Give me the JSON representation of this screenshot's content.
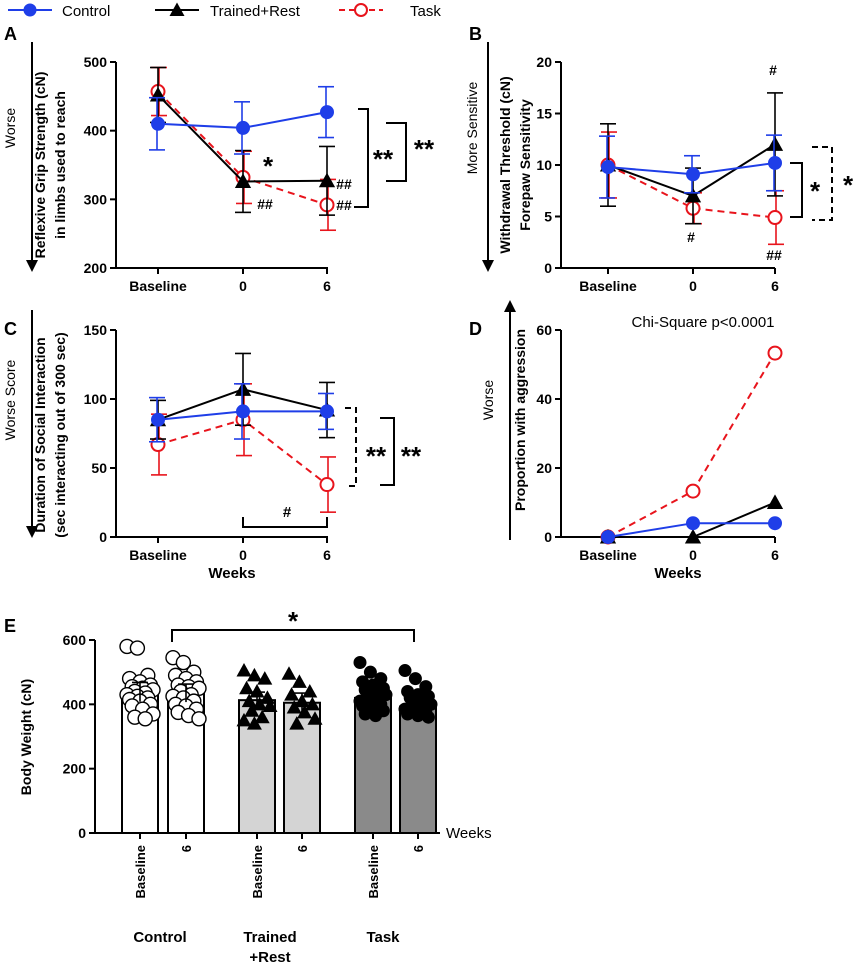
{
  "legend": {
    "items": [
      {
        "name": "Control",
        "color": "#1f3ee8",
        "marker": "filled-circle",
        "dash": false
      },
      {
        "name": "Trained+Rest",
        "color": "#000000",
        "marker": "filled-triangle",
        "dash": false
      },
      {
        "name": "Task",
        "color": "#e8141c",
        "marker": "open-circle",
        "dash": true
      }
    ]
  },
  "chart_data": [
    {
      "panel": "A",
      "type": "line",
      "ylabel_lines": [
        "Reflexive Grip Strength (cN)",
        "in limbs used to reach"
      ],
      "direction_label": "Worse",
      "categories": [
        "Baseline",
        "0",
        "6"
      ],
      "ylim": [
        200,
        500
      ],
      "yticks": [
        200,
        300,
        400,
        500
      ],
      "series": [
        {
          "name": "Control",
          "values": [
            410,
            404,
            427
          ],
          "errors": [
            38,
            38,
            37
          ]
        },
        {
          "name": "Trained+Rest",
          "values": [
            452,
            326,
            327
          ],
          "errors": [
            40,
            45,
            50
          ]
        },
        {
          "name": "Task",
          "values": [
            457,
            332,
            292
          ],
          "errors": [
            35,
            38,
            37
          ]
        }
      ],
      "annotations": [
        {
          "text": "*",
          "category": "0",
          "value": 345
        },
        {
          "text": "##",
          "category": "0",
          "value": 291
        },
        {
          "text": "##",
          "category": "6",
          "value": 322
        },
        {
          "text": "##",
          "category": "6",
          "value": 289
        },
        {
          "text": "**",
          "bracket": "Control vs Trained+Rest"
        },
        {
          "text": "**",
          "bracket": "Control vs Task"
        }
      ]
    },
    {
      "panel": "B",
      "type": "line",
      "ylabel_lines": [
        "Withdrawal Threshold (cN)",
        "Forepaw Sensitivity"
      ],
      "direction_label": "More Sensitive",
      "categories": [
        "Baseline",
        "0",
        "6"
      ],
      "ylim": [
        0,
        20
      ],
      "yticks": [
        0,
        5,
        10,
        15,
        20
      ],
      "series": [
        {
          "name": "Control",
          "values": [
            9.8,
            9.1,
            10.2
          ],
          "errors": [
            3.0,
            1.8,
            2.7
          ]
        },
        {
          "name": "Trained+Rest",
          "values": [
            10.0,
            7.0,
            12.0
          ],
          "errors": [
            4.0,
            2.7,
            5.0
          ]
        },
        {
          "name": "Task",
          "values": [
            10.0,
            5.8,
            4.9
          ],
          "errors": [
            3.2,
            1.5,
            2.6
          ]
        }
      ],
      "annotations": [
        {
          "text": "#",
          "category": "6",
          "value": 19.2
        },
        {
          "text": "#",
          "category": "0",
          "value": 2.8
        },
        {
          "text": "##",
          "category": "6",
          "value": 1.0
        },
        {
          "text": "*",
          "bracket": "Control vs Task"
        },
        {
          "text": "*",
          "bracket": "Trained+Rest vs Task"
        }
      ]
    },
    {
      "panel": "C",
      "type": "line",
      "ylabel_lines": [
        "Duration of Social Interaction",
        "(sec interacting out of 300 sec)"
      ],
      "direction_label": "Worse Score",
      "xlabel": "Weeks",
      "categories": [
        "Baseline",
        "0",
        "6"
      ],
      "ylim": [
        0,
        150
      ],
      "yticks": [
        0,
        50,
        100,
        150
      ],
      "series": [
        {
          "name": "Control",
          "values": [
            85,
            91,
            91
          ],
          "errors": [
            16,
            20,
            13
          ]
        },
        {
          "name": "Trained+Rest",
          "values": [
            85,
            107,
            92
          ],
          "errors": [
            14,
            26,
            20
          ]
        },
        {
          "name": "Task",
          "values": [
            67,
            85,
            38
          ],
          "errors": [
            22,
            26,
            20
          ]
        }
      ],
      "annotations": [
        {
          "text": "#",
          "bracket": "Task 0 vs 6"
        },
        {
          "text": "**",
          "bracket": "Control vs Task"
        },
        {
          "text": "**",
          "bracket": "Trained+Rest vs Task"
        }
      ]
    },
    {
      "panel": "D",
      "type": "line",
      "title": "Chi-Square p<0.0001",
      "ylabel": "Proportion with aggression",
      "direction_label": "Worse",
      "xlabel": "Weeks",
      "categories": [
        "Baseline",
        "0",
        "6"
      ],
      "ylim": [
        0,
        60
      ],
      "yticks": [
        0,
        20,
        40,
        60
      ],
      "series": [
        {
          "name": "Control",
          "values": [
            0,
            4,
            4
          ]
        },
        {
          "name": "Trained+Rest",
          "values": [
            0,
            0,
            10
          ]
        },
        {
          "name": "Task",
          "values": [
            0,
            13.3,
            53.3
          ]
        }
      ]
    },
    {
      "panel": "E",
      "type": "bar",
      "ylabel": "Body Weight (cN)",
      "xlabel": "Weeks",
      "ylim": [
        0,
        600
      ],
      "yticks": [
        0,
        200,
        400,
        600
      ],
      "group_labels": [
        {
          "key": "Control",
          "lines": [
            "Control"
          ]
        },
        {
          "key": "Trained+Rest",
          "lines": [
            "Trained",
            "+Rest"
          ]
        },
        {
          "key": "Task",
          "lines": [
            "Task"
          ]
        }
      ],
      "bars": [
        {
          "group": "Control",
          "label": "Baseline",
          "value": 438,
          "error": 30,
          "fill": "#ffffff",
          "marker": "open-circle",
          "points": [
            580,
            575,
            490,
            480,
            470,
            460,
            455,
            450,
            445,
            440,
            435,
            430,
            425,
            420,
            415,
            410,
            400,
            395,
            385,
            370,
            360,
            355
          ]
        },
        {
          "group": "Control",
          "label": "6",
          "value": 435,
          "error": 28,
          "fill": "#ffffff",
          "marker": "open-circle",
          "points": [
            545,
            530,
            500,
            490,
            480,
            470,
            460,
            455,
            450,
            440,
            430,
            425,
            420,
            410,
            400,
            395,
            385,
            375,
            365,
            355
          ]
        },
        {
          "group": "Trained+Rest",
          "label": "Baseline",
          "value": 413,
          "error": 25,
          "fill": "#d4d4d4",
          "marker": "filled-triangle",
          "points": [
            505,
            490,
            480,
            450,
            440,
            420,
            410,
            400,
            395,
            380,
            360,
            350,
            340
          ]
        },
        {
          "group": "Trained+Rest",
          "label": "6",
          "value": 405,
          "error": 30,
          "fill": "#d4d4d4",
          "marker": "filled-triangle",
          "points": [
            495,
            470,
            440,
            430,
            410,
            400,
            390,
            375,
            355,
            340
          ]
        },
        {
          "group": "Task",
          "label": "Baseline",
          "value": 420,
          "error": 25,
          "fill": "#8a8a8a",
          "marker": "filled-circle",
          "points": [
            530,
            500,
            480,
            470,
            460,
            450,
            445,
            440,
            430,
            425,
            420,
            410,
            405,
            400,
            395,
            390,
            380,
            370,
            365
          ]
        },
        {
          "group": "Task",
          "label": "6",
          "value": 393,
          "error": 20,
          "fill": "#8a8a8a",
          "marker": "filled-circle",
          "points": [
            505,
            480,
            455,
            440,
            430,
            425,
            420,
            410,
            400,
            395,
            390,
            385,
            380,
            375,
            370,
            365,
            360
          ]
        }
      ],
      "annotations": [
        {
          "text": "*",
          "bracket": "Control 6 vs Task 6"
        }
      ]
    }
  ]
}
